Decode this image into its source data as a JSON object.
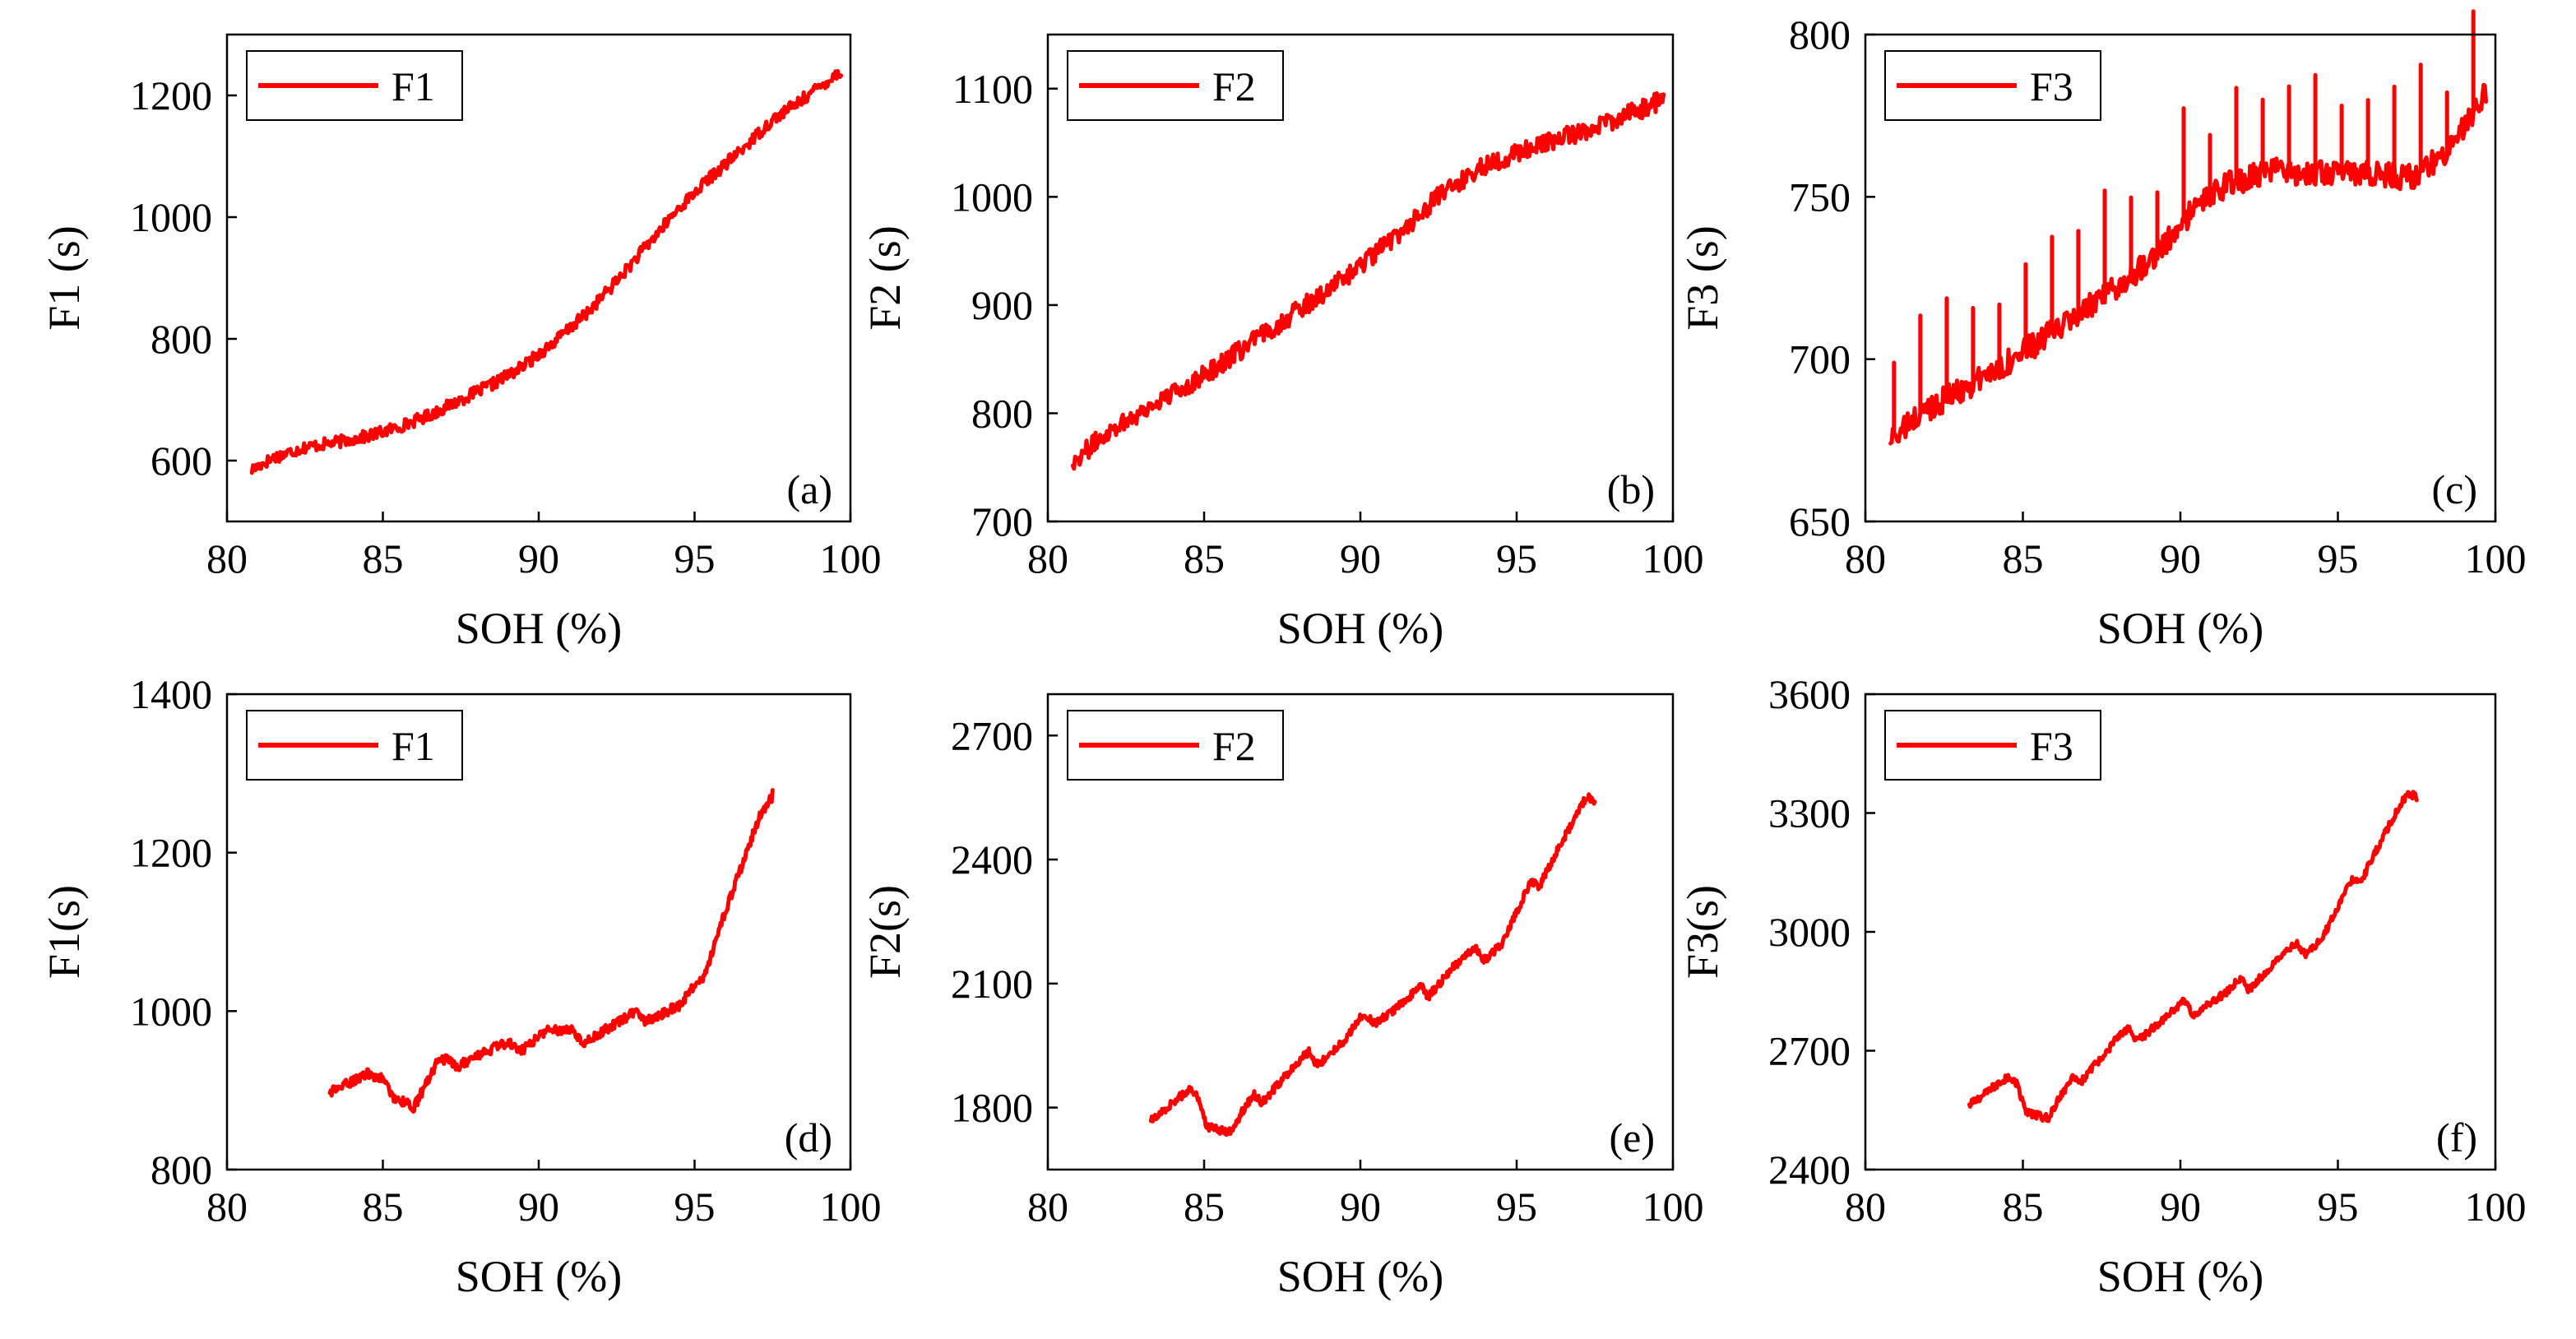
{
  "series_color": "#ff0000",
  "chart_data": [
    {
      "panel": "(a)",
      "type": "line",
      "title": "",
      "xlabel": "SOH (%)",
      "ylabel": "F1 (s)",
      "xlim": [
        80,
        100
      ],
      "ylim": [
        500,
        1300
      ],
      "xticks": [
        80,
        85,
        90,
        95,
        100
      ],
      "yticks": [
        600,
        800,
        1000,
        1200
      ],
      "legend": "F1",
      "legend_position": "top-left",
      "series": [
        {
          "name": "F1",
          "x": [
            80.8,
            81.5,
            82.5,
            83.5,
            84.5,
            85.5,
            86.5,
            87.5,
            88.5,
            89.5,
            90.5,
            91.5,
            92.5,
            93.5,
            94.5,
            95.5,
            96.5,
            97.5,
            98.5,
            99.7
          ],
          "y": [
            585,
            605,
            622,
            630,
            640,
            655,
            675,
            700,
            725,
            755,
            795,
            840,
            895,
            955,
            1015,
            1065,
            1110,
            1160,
            1195,
            1240
          ],
          "noise": 10,
          "spikes": 0
        }
      ]
    },
    {
      "panel": "(b)",
      "type": "line",
      "title": "",
      "xlabel": "SOH (%)",
      "ylabel": "F2 (s)",
      "xlim": [
        80,
        100
      ],
      "ylim": [
        700,
        1150
      ],
      "xticks": [
        80,
        85,
        90,
        95,
        100
      ],
      "yticks": [
        700,
        800,
        900,
        1000,
        1100
      ],
      "legend": "F2",
      "legend_position": "top-left",
      "series": [
        {
          "name": "F2",
          "x": [
            80.8,
            82,
            83.5,
            85,
            86.5,
            88,
            89.5,
            91,
            92.5,
            94,
            95.5,
            97,
            98.5,
            99.7
          ],
          "y": [
            755,
            785,
            810,
            835,
            865,
            895,
            925,
            960,
            1000,
            1030,
            1045,
            1060,
            1075,
            1090
          ],
          "noise": 9,
          "spikes": 0
        }
      ]
    },
    {
      "panel": "(c)",
      "type": "line",
      "title": "",
      "xlabel": "SOH (%)",
      "ylabel": "F3 (s)",
      "xlim": [
        80,
        100
      ],
      "ylim": [
        650,
        800
      ],
      "xticks": [
        80,
        85,
        90,
        95,
        100
      ],
      "yticks": [
        650,
        700,
        750,
        800
      ],
      "legend": "F3",
      "legend_position": "top-left",
      "series": [
        {
          "name": "F3",
          "x": [
            80.8,
            82,
            83.5,
            85,
            86.5,
            88,
            89.5,
            90.5,
            91.5,
            93,
            94.5,
            96,
            97.5,
            98.5,
            99.7
          ],
          "y": [
            675,
            685,
            693,
            702,
            712,
            722,
            735,
            747,
            754,
            758,
            757,
            757,
            756,
            765,
            782
          ],
          "noise": 4,
          "spikes": 22,
          "spike_height": 35
        }
      ]
    },
    {
      "panel": "(d)",
      "type": "line",
      "title": "",
      "xlabel": "SOH (%)",
      "ylabel": "F1(s)",
      "xlim": [
        80,
        100
      ],
      "ylim": [
        800,
        1400
      ],
      "xticks": [
        80,
        85,
        90,
        95,
        100
      ],
      "yticks": [
        800,
        1000,
        1200,
        1400
      ],
      "legend": "F1",
      "legend_position": "top-left",
      "series": [
        {
          "name": "F1",
          "x": [
            83.3,
            84.5,
            85.3,
            86,
            86.7,
            88,
            89.5,
            90.2,
            91.5,
            93,
            94.5,
            95.2,
            95.8,
            96.5,
            97.5
          ],
          "y": [
            905,
            918,
            900,
            880,
            928,
            945,
            958,
            975,
            968,
            990,
            1005,
            1035,
            1110,
            1180,
            1280
          ],
          "noise": 6,
          "spikes": 0,
          "sawtooth": 7,
          "saw_height": 30
        }
      ]
    },
    {
      "panel": "(e)",
      "type": "line",
      "title": "",
      "xlabel": "SOH (%)",
      "ylabel": "F2(s)",
      "xlim": [
        80,
        100
      ],
      "ylim": [
        1650,
        2800
      ],
      "xticks": [
        80,
        85,
        90,
        95,
        100
      ],
      "yticks": [
        1800,
        2100,
        2400,
        2700
      ],
      "legend": "F2",
      "legend_position": "top-left",
      "series": [
        {
          "name": "F2",
          "x": [
            83.3,
            84.5,
            85.2,
            85.8,
            86.8,
            88,
            89.5,
            90.3,
            91.5,
            93,
            94.5,
            95.5,
            96.5,
            97.5
          ],
          "y": [
            1790,
            1830,
            1770,
            1740,
            1830,
            1900,
            1960,
            2020,
            2050,
            2140,
            2200,
            2330,
            2450,
            2560
          ],
          "noise": 10,
          "spikes": 0,
          "sawtooth": 8,
          "saw_height": 90
        }
      ]
    },
    {
      "panel": "(f)",
      "type": "line",
      "title": "",
      "xlabel": "SOH (%)",
      "ylabel": "F3(s)",
      "xlim": [
        80,
        100
      ],
      "ylim": [
        2400,
        3600
      ],
      "xticks": [
        80,
        85,
        90,
        95,
        100
      ],
      "yticks": [
        2400,
        2700,
        3000,
        3300,
        3600
      ],
      "legend": "F3",
      "legend_position": "top-left",
      "series": [
        {
          "name": "F3",
          "x": [
            83.3,
            84.5,
            85.2,
            85.8,
            86.8,
            88,
            89.5,
            90.3,
            91.5,
            93,
            94.5,
            95.5,
            96.5,
            97.5
          ],
          "y": [
            2585,
            2620,
            2560,
            2530,
            2640,
            2720,
            2780,
            2810,
            2840,
            2920,
            2990,
            3120,
            3250,
            3360
          ],
          "noise": 10,
          "spikes": 0,
          "sawtooth": 8,
          "saw_height": 90
        }
      ]
    }
  ]
}
